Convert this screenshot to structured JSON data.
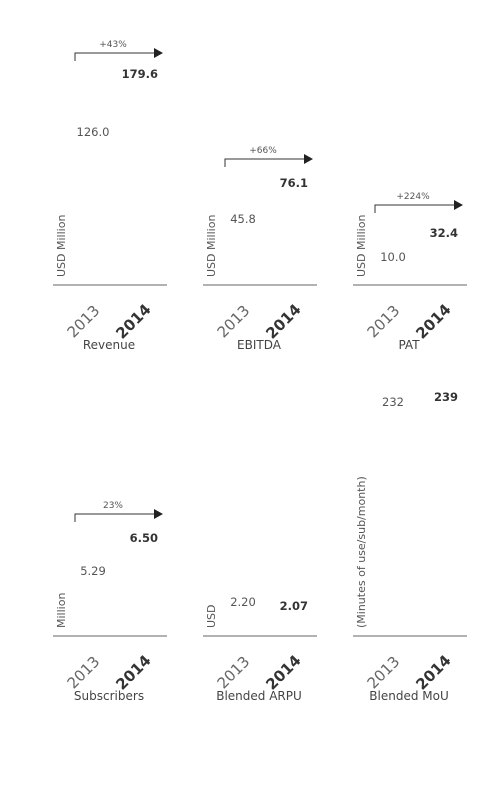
{
  "chart_data": [
    {
      "type": "bar",
      "title": "Revenue",
      "ylabel": "USD Million",
      "categories": [
        "2013",
        "2014"
      ],
      "values": [
        126.0,
        179.6
      ],
      "value_labels": [
        "126.0",
        "179.6"
      ],
      "growth_label": "+43%",
      "grid": false
    },
    {
      "type": "bar",
      "title": "EBITDA",
      "ylabel": "USD Million",
      "categories": [
        "2013",
        "2014"
      ],
      "values": [
        45.8,
        76.1
      ],
      "value_labels": [
        "45.8",
        "76.1"
      ],
      "growth_label": "+66%",
      "grid": false
    },
    {
      "type": "bar",
      "title": "PAT",
      "ylabel": "USD Million",
      "categories": [
        "2013",
        "2014"
      ],
      "values": [
        10.0,
        32.4
      ],
      "value_labels": [
        "10.0",
        "32.4"
      ],
      "growth_label": "+224%",
      "grid": false
    },
    {
      "type": "bar",
      "title": "Subscribers",
      "ylabel": "Million",
      "categories": [
        "2013",
        "2014"
      ],
      "values": [
        5.29,
        6.5
      ],
      "value_labels": [
        "5.29",
        "6.50"
      ],
      "growth_label": "23%",
      "grid": false
    },
    {
      "type": "bar",
      "title": "Blended ARPU",
      "ylabel": "USD",
      "categories": [
        "2013",
        "2014"
      ],
      "values": [
        2.2,
        2.07
      ],
      "value_labels": [
        "2.20",
        "2.07"
      ],
      "growth_label": "",
      "grid": false
    },
    {
      "type": "bar",
      "title": "Blended MoU",
      "ylabel": "(Minutes of use/sub/month)",
      "categories": [
        "2013",
        "2014"
      ],
      "values": [
        232,
        239
      ],
      "value_labels": [
        "232",
        "239"
      ],
      "growth_label": "",
      "grid": false
    }
  ]
}
